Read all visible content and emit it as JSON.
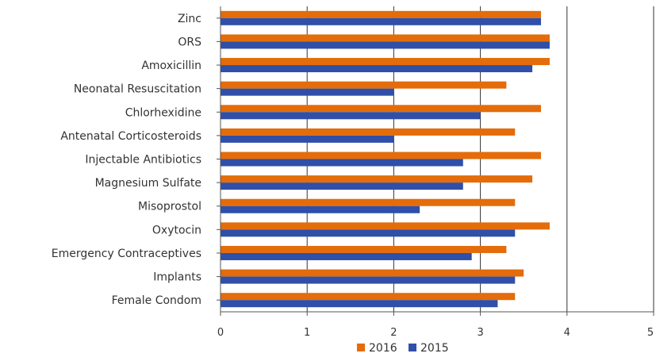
{
  "chart_data": {
    "type": "bar",
    "orientation": "horizontal",
    "title": "",
    "xlabel": "",
    "ylabel": "",
    "xlim": [
      0,
      5
    ],
    "x_ticks": [
      0,
      1,
      2,
      3,
      4,
      5
    ],
    "grid": "vertical major gridlines",
    "legend_position": "bottom",
    "categories": [
      "Zinc",
      "ORS",
      "Amoxicillin",
      "Neonatal Resuscitation",
      "Chlorhexidine",
      "Antenatal Corticosteroids",
      "Injectable Antibiotics",
      "Magnesium Sulfate",
      "Misoprostol",
      "Oxytocin",
      "Emergency Contraceptives",
      "Implants",
      "Female Condom"
    ],
    "series": [
      {
        "name": "2016",
        "color": "#e46c0a",
        "values": [
          3.7,
          3.8,
          3.8,
          3.3,
          3.7,
          3.4,
          3.7,
          3.6,
          3.4,
          3.8,
          3.3,
          3.5,
          3.4
        ]
      },
      {
        "name": "2015",
        "color": "#2f4fa8",
        "values": [
          3.7,
          3.8,
          3.6,
          2.0,
          3.0,
          2.0,
          2.8,
          2.8,
          2.3,
          3.4,
          2.9,
          3.4,
          3.2
        ]
      }
    ]
  }
}
